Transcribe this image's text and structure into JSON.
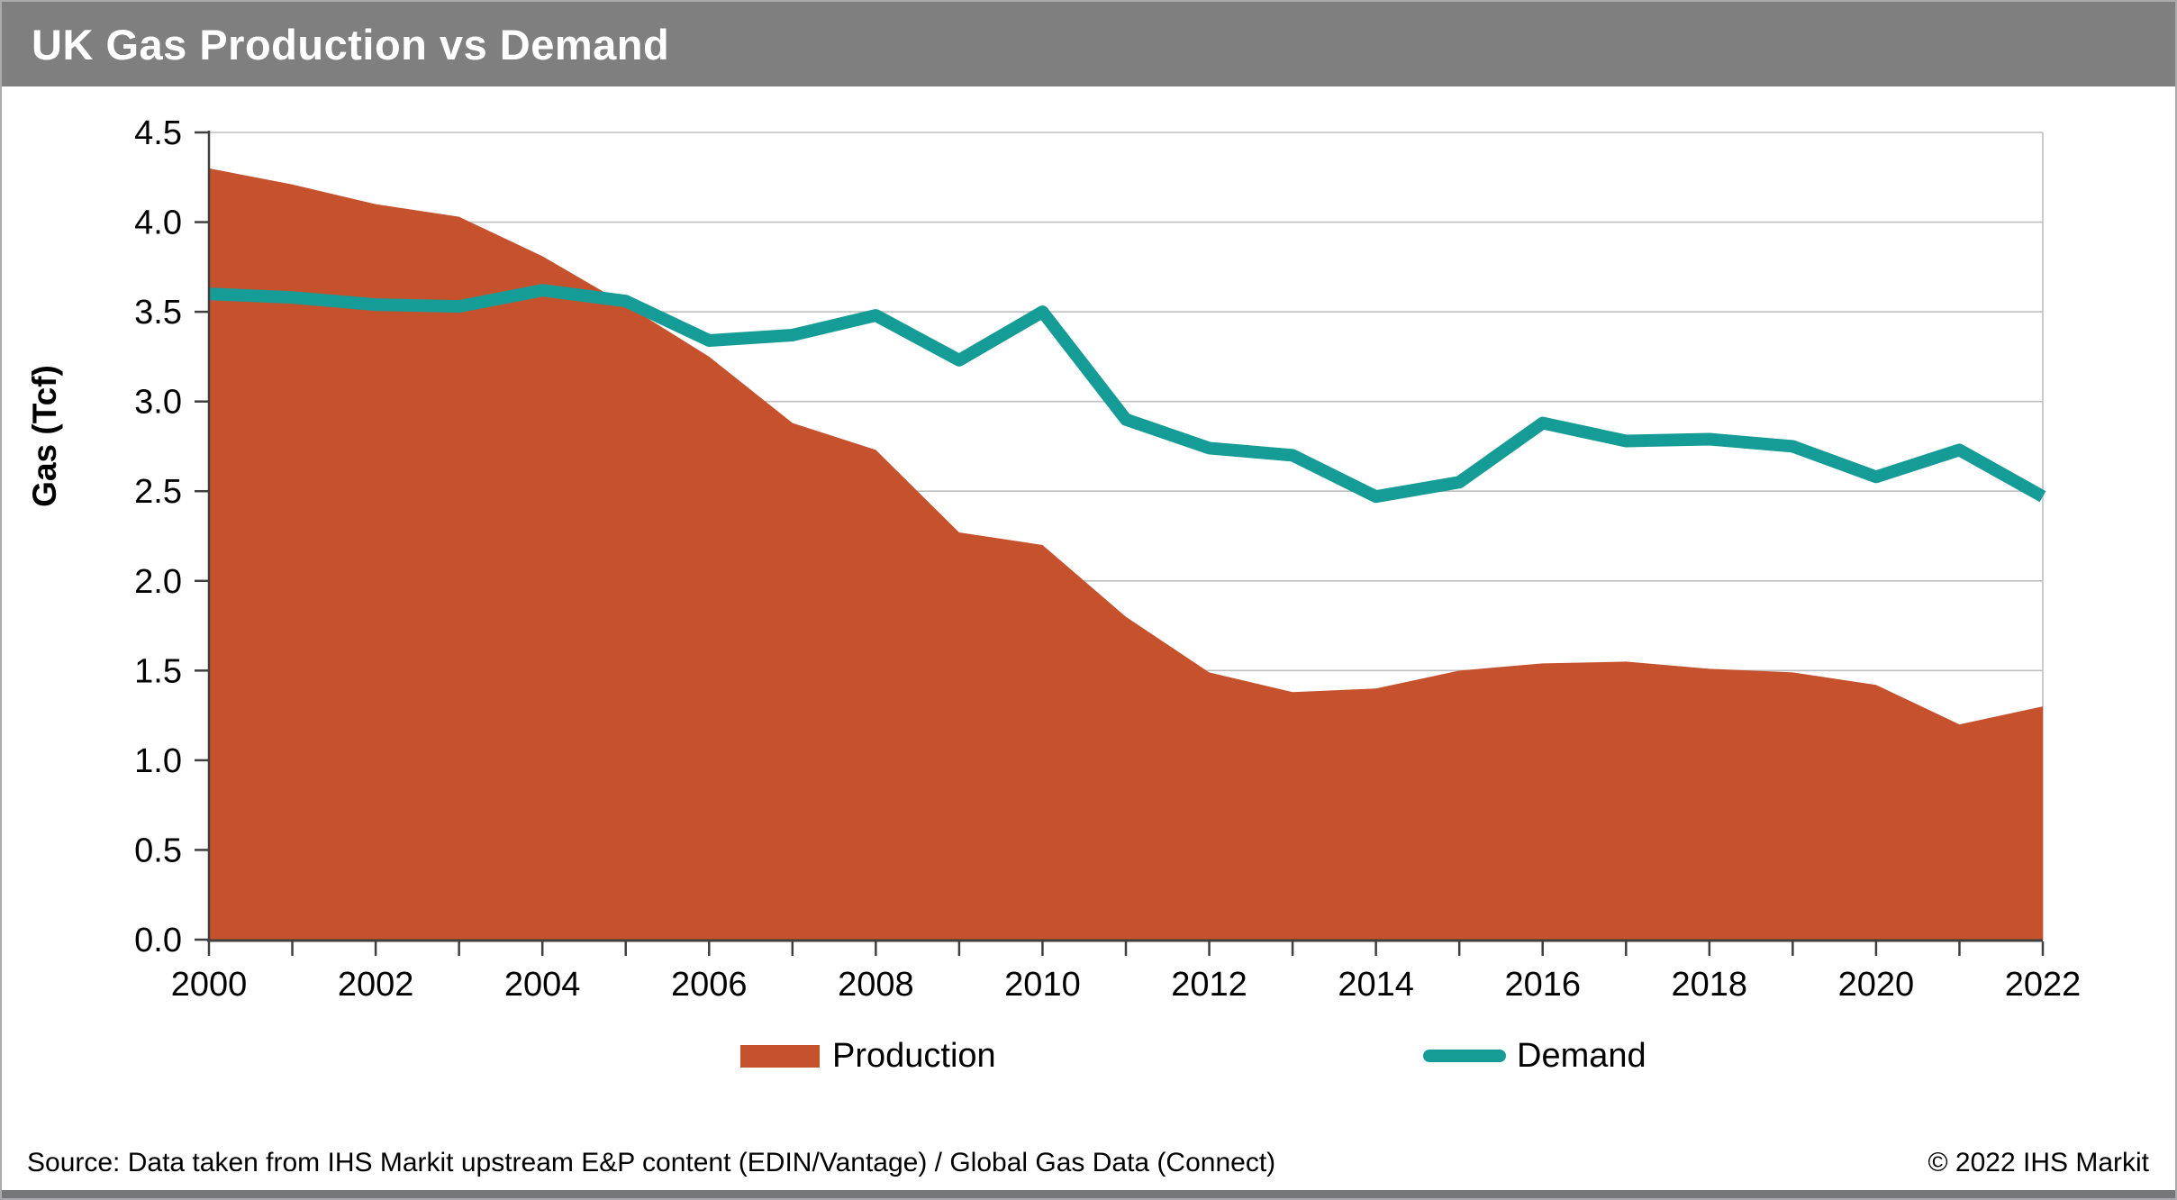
{
  "header": {
    "title": "UK Gas Production vs Demand"
  },
  "chart_data": {
    "type": "area",
    "title": "UK Gas Production vs Demand",
    "xlabel": "",
    "ylabel": "Gas (Tcf)",
    "ylim": [
      0,
      4.5
    ],
    "ytick_step": 0.5,
    "xtick_label_step": 2,
    "grid": "horizontal",
    "legend_position": "bottom",
    "x": [
      2000,
      2001,
      2002,
      2003,
      2004,
      2005,
      2006,
      2007,
      2008,
      2009,
      2010,
      2011,
      2012,
      2013,
      2014,
      2015,
      2016,
      2017,
      2018,
      2019,
      2020,
      2021,
      2022
    ],
    "series": [
      {
        "name": "Production",
        "style": "area",
        "color": "#c6512d",
        "values": [
          4.3,
          4.21,
          4.1,
          4.03,
          3.81,
          3.54,
          3.25,
          2.88,
          2.73,
          2.27,
          2.2,
          1.8,
          1.49,
          1.38,
          1.4,
          1.5,
          1.54,
          1.55,
          1.51,
          1.49,
          1.42,
          1.2,
          1.3
        ]
      },
      {
        "name": "Demand",
        "style": "line",
        "color": "#169c96",
        "values": [
          3.6,
          3.58,
          3.54,
          3.53,
          3.62,
          3.56,
          3.34,
          3.37,
          3.48,
          3.23,
          3.5,
          2.9,
          2.74,
          2.7,
          2.47,
          2.55,
          2.88,
          2.78,
          2.79,
          2.75,
          2.58,
          2.73,
          2.47
        ]
      }
    ]
  },
  "legend": {
    "production_label": "Production",
    "demand_label": "Demand"
  },
  "footer": {
    "source": "Source: Data taken from IHS Markit upstream E&P content (EDIN/Vantage) / Global Gas Data (Connect)",
    "copyright": "© 2022 IHS Markit"
  },
  "colors": {
    "production": "#c6512d",
    "demand": "#169c96",
    "header_bar": "#7f7f7f",
    "footer_bar": "#75777a",
    "gridline": "#bfbfbf",
    "axis": "#3f3f3f"
  }
}
